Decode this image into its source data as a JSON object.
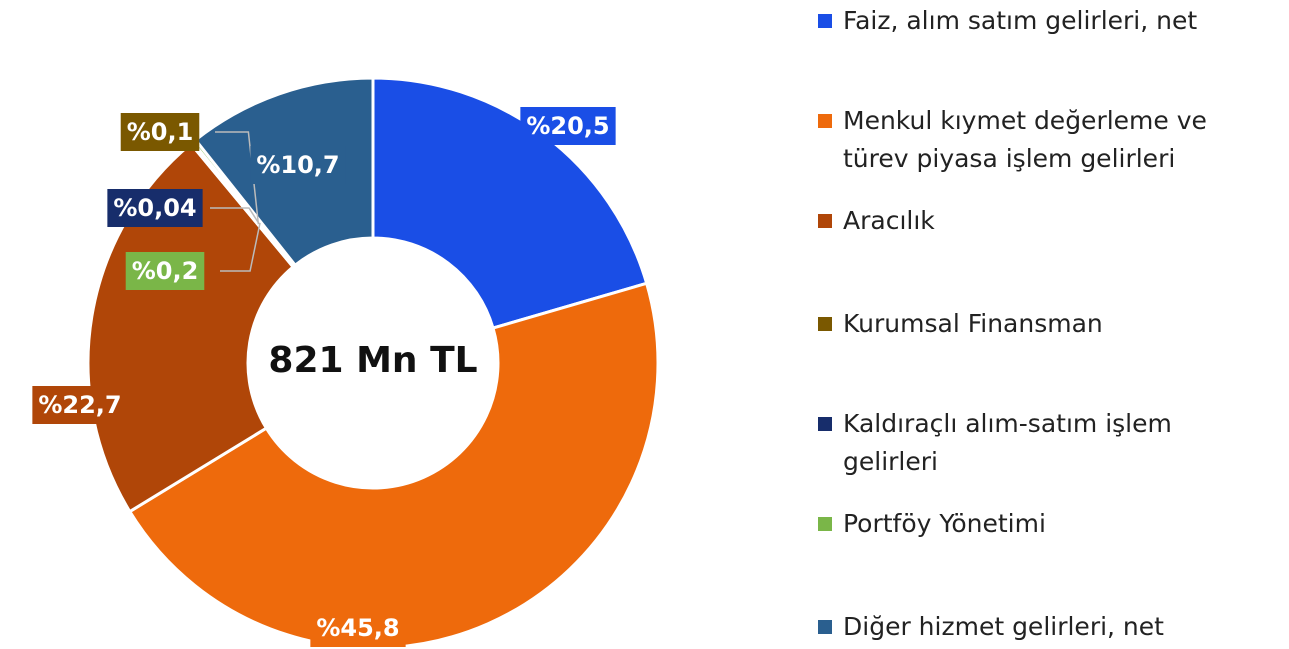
{
  "chart_data": {
    "type": "donut",
    "center_label": "821 Mn TL",
    "categories": [
      "Faiz, alım satım gelirleri, net",
      "Menkul kıymet değerleme ve türev piyasa işlem gelirleri",
      "Aracılık",
      "Kurumsal Finansman",
      "Kaldıraçlı alım-satım işlem gelirleri",
      "Portföy Yönetimi",
      "Diğer hizmet gelirleri, net"
    ],
    "values": [
      20.5,
      45.8,
      22.7,
      0.1,
      0.04,
      0.2,
      10.7
    ],
    "value_labels": [
      "%20,5",
      "%45,8",
      "%22,7",
      "%0,1",
      "%0,04",
      "%0,2",
      "%10,7"
    ],
    "colors": [
      "#1a4ee6",
      "#ee6a0c",
      "#b04608",
      "#7a5800",
      "#172d6b",
      "#7ab648",
      "#2a5f8f"
    ],
    "legend": "right"
  }
}
